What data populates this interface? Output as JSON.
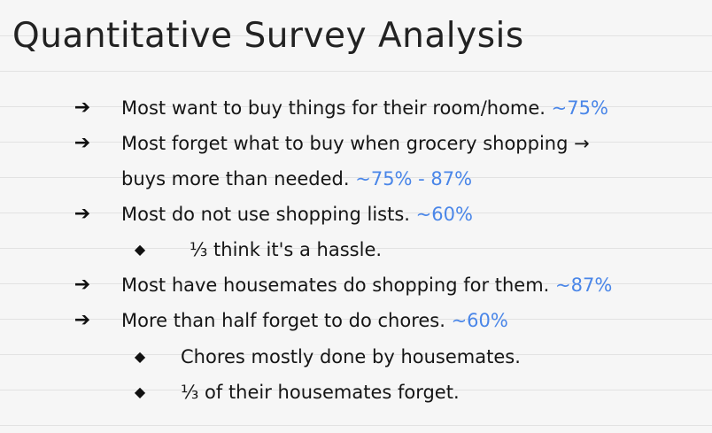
{
  "title": "Quantitative Survey Analysis",
  "accent_color": "#4a86e8",
  "bullets": [
    {
      "icon": "arrow-right-icon",
      "symbol": "➔",
      "text": "Most want to buy things for their room/home. ",
      "pct": "~75%"
    },
    {
      "icon": "arrow-right-icon",
      "symbol": "➔",
      "text": "Most forget what to buy when grocery shopping →",
      "text2": "buys more than needed. ",
      "pct": "~75% - 87%"
    },
    {
      "icon": "arrow-right-icon",
      "symbol": "➔",
      "text": "Most do not use shopping lists. ",
      "pct": "~60%"
    },
    {
      "icon": "diamond-icon",
      "symbol": "◆",
      "text": "⅓ think it's a hassle."
    },
    {
      "icon": "arrow-right-icon",
      "symbol": "➔",
      "text": "Most have housemates do shopping for them. ",
      "pct": "~87%"
    },
    {
      "icon": "arrow-right-icon",
      "symbol": "➔",
      "text": "More than half forget to do chores. ",
      "pct": "~60%"
    },
    {
      "icon": "diamond-icon",
      "symbol": "◆",
      "text": "Chores mostly done by housemates."
    },
    {
      "icon": "diamond-icon",
      "symbol": "◆",
      "text": "⅓ of their housemates forget."
    }
  ]
}
